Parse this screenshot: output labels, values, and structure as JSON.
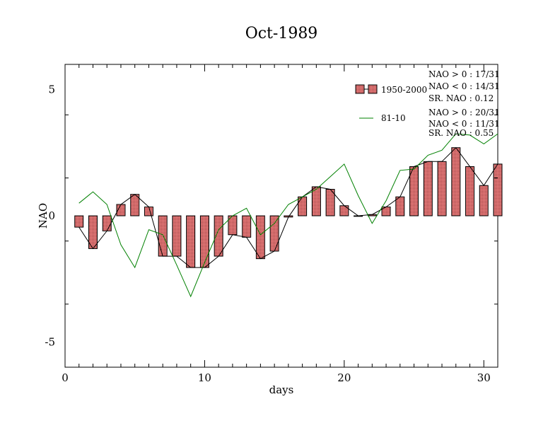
{
  "chart_data": {
    "type": "bar",
    "title": "Oct-1989",
    "xlabel": "days",
    "ylabel": "NAO",
    "xlim": [
      0,
      31
    ],
    "ylim": [
      -6,
      6
    ],
    "xticks": [
      0,
      10,
      20,
      30
    ],
    "yticks": [
      -5,
      0,
      5
    ],
    "x": [
      1,
      2,
      3,
      4,
      5,
      6,
      7,
      8,
      9,
      10,
      11,
      12,
      13,
      14,
      15,
      16,
      17,
      18,
      19,
      20,
      21,
      22,
      23,
      24,
      25,
      26,
      27,
      28,
      29,
      30,
      31
    ],
    "series": [
      {
        "name": "1950-2000",
        "kind": "bar",
        "color": "#e87a7a",
        "values": [
          -0.45,
          -1.3,
          -0.6,
          0.45,
          0.85,
          0.35,
          -1.6,
          -1.6,
          -2.05,
          -2.05,
          -1.6,
          -0.75,
          -0.85,
          -1.7,
          -1.4,
          -0.05,
          0.75,
          1.15,
          1.05,
          0.4,
          0.0,
          0.05,
          0.35,
          0.75,
          1.95,
          2.15,
          2.15,
          2.7,
          1.95,
          1.2,
          2.05
        ]
      },
      {
        "name": "81-10",
        "kind": "line",
        "color": "#008000",
        "values": [
          0.5,
          0.95,
          0.45,
          -1.15,
          -2.05,
          -0.55,
          -0.75,
          -1.95,
          -3.2,
          -1.85,
          -0.55,
          0.0,
          0.3,
          -0.75,
          -0.3,
          0.45,
          0.75,
          1.05,
          1.55,
          2.05,
          0.8,
          -0.3,
          0.6,
          1.8,
          1.85,
          2.4,
          2.6,
          3.25,
          3.2,
          2.85,
          3.25
        ]
      }
    ],
    "legend": {
      "placement": "top-right",
      "stats": [
        [
          "NAO > 0 : 17/31",
          "NAO < 0 : 14/31",
          "SR. NAO :  0.12"
        ],
        [
          "NAO > 0 : 20/31",
          "NAO < 0 : 11/31",
          "SR. NAO :  0.55"
        ]
      ]
    }
  }
}
